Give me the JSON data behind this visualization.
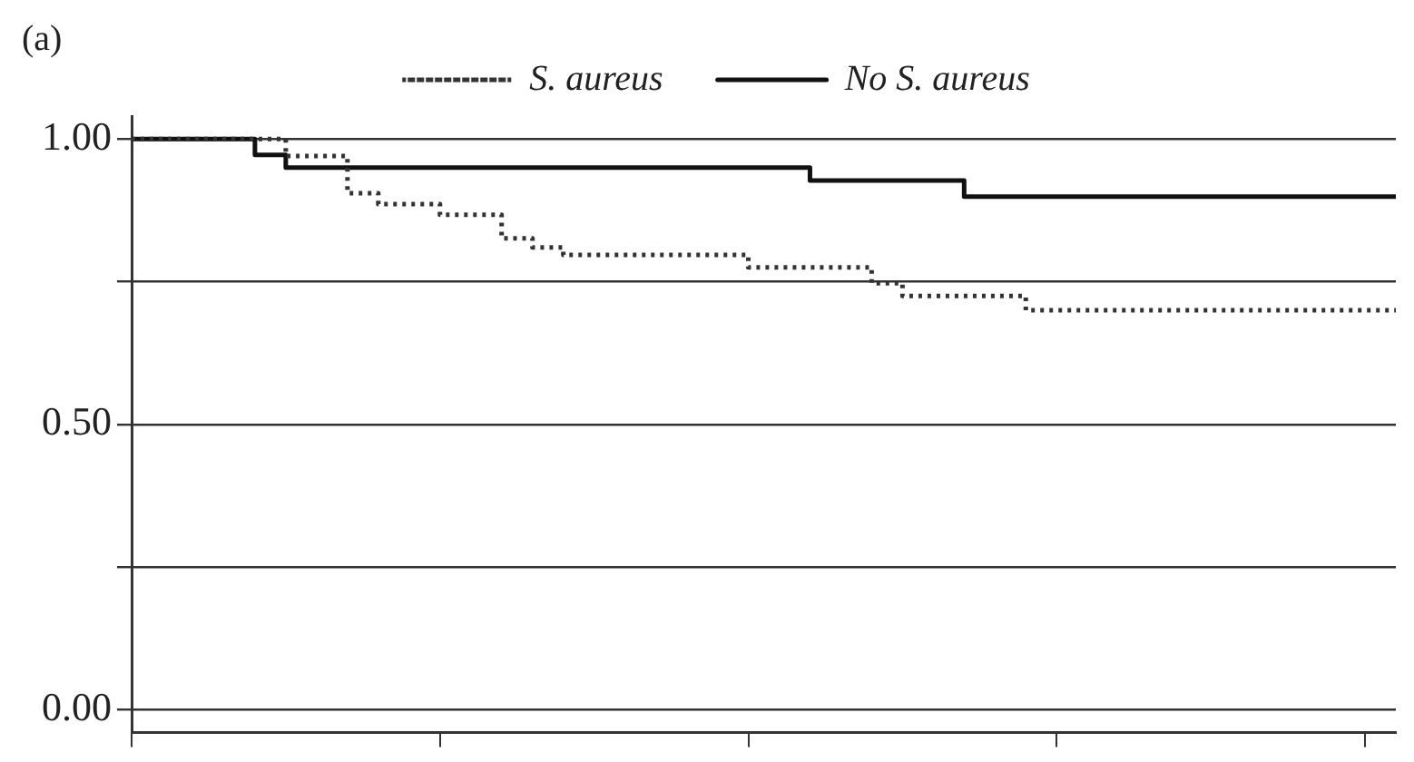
{
  "chart_data": {
    "type": "step",
    "title": "(a)",
    "legend": "top",
    "grid": "y",
    "tick_labels": "y",
    "categories": [
      null,
      null,
      null,
      null,
      null,
      null,
      null,
      null,
      null,
      null,
      null,
      null,
      null,
      null,
      null,
      null,
      null,
      null,
      null,
      null,
      null,
      null,
      null,
      null,
      null,
      null,
      null,
      null,
      null,
      null,
      null,
      null,
      null,
      null,
      null,
      null,
      null,
      null,
      null,
      null,
      null,
      null
    ],
    "ylim": [
      -0.04,
      1.04
    ],
    "yticks": [
      {
        "value": 0,
        "label": "0.00"
      },
      {
        "value": 0.25,
        "label": null
      },
      {
        "value": 0.5,
        "label": "0.50"
      },
      {
        "value": 0.75,
        "label": null
      },
      {
        "value": 1,
        "label": "1.00"
      }
    ],
    "series": [
      {
        "name": "S. aureus",
        "color": "#333333",
        "line_style": "dotted",
        "values": [
          1,
          1,
          1,
          1,
          1,
          0.97,
          0.97,
          0.905,
          0.886,
          0.886,
          0.867,
          0.867,
          0.826,
          0.81,
          0.797,
          0.797,
          0.797,
          0.797,
          0.797,
          0.797,
          0.775,
          0.775,
          0.775,
          0.775,
          0.747,
          0.725,
          0.725,
          0.725,
          0.725,
          0.7,
          0.7,
          0.7,
          0.7,
          0.7,
          0.7,
          0.7,
          0.7,
          0.7,
          0.7,
          0.7,
          0.7,
          0.7
        ]
      },
      {
        "name": "No S. aureus",
        "color": "#111111",
        "line_style": "solid",
        "values": [
          1,
          1,
          1,
          1,
          0.972,
          0.95,
          0.95,
          0.95,
          0.95,
          0.95,
          0.95,
          0.95,
          0.95,
          0.95,
          0.95,
          0.95,
          0.95,
          0.95,
          0.95,
          0.95,
          0.95,
          0.95,
          0.927,
          0.927,
          0.927,
          0.927,
          0.927,
          0.899,
          0.899,
          0.899,
          0.899,
          0.899,
          0.899,
          0.899,
          0.899,
          0.899,
          0.899,
          0.899,
          0.899,
          0.899,
          0.899,
          0.899
        ]
      }
    ]
  }
}
